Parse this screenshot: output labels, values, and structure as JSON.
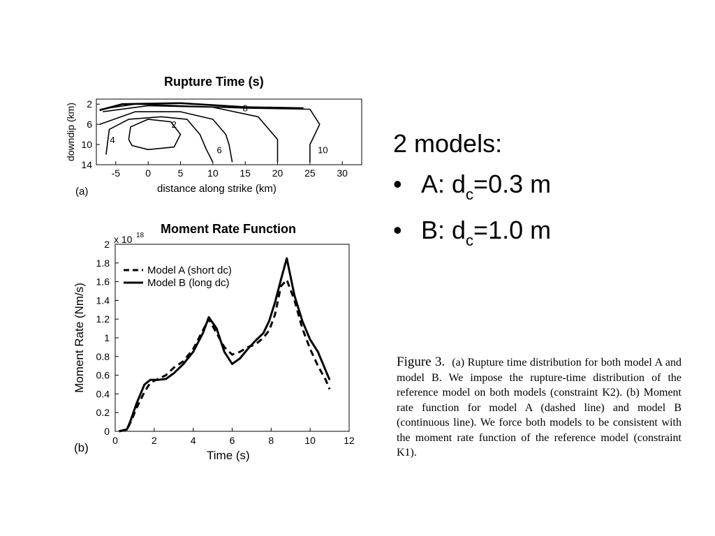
{
  "slide": {
    "heading": "2 models:",
    "bullets": [
      {
        "symbol": "•",
        "prefix": "A: d",
        "subscript": "c",
        "suffix": "=0.3 m"
      },
      {
        "symbol": "•",
        "prefix": "B: d",
        "subscript": "c",
        "suffix": "=1.0 m"
      }
    ]
  },
  "caption": {
    "label": "Figure 3.",
    "text": "(a) Rupture time distribution for both model A and model B. We impose the rupture-time distribution of the reference model on both models (constraint K2). (b) Moment rate function for model A (dashed line) and model B (continuous line). We force both models to be consistent with the moment rate function of the reference model (constraint K1)."
  },
  "chart_data": [
    {
      "type": "contour",
      "panel_label": "(a)",
      "title": "Rupture Time (s)",
      "xlabel": "distance along strike (km)",
      "ylabel": "downdip (km)",
      "xlim": [
        -8,
        33
      ],
      "ylim": [
        14,
        1
      ],
      "x_ticks": [
        -5,
        0,
        5,
        10,
        15,
        20,
        25,
        30
      ],
      "y_ticks": [
        2,
        6,
        10,
        14
      ],
      "contours": [
        {
          "label": "2",
          "points": [
            [
              -3,
              9
            ],
            [
              -2.7,
              6.5
            ],
            [
              0,
              5
            ],
            [
              3.5,
              5.5
            ],
            [
              5,
              8
            ],
            [
              4,
              10.5
            ],
            [
              0,
              11
            ],
            [
              -2.5,
              10.2
            ],
            [
              -3,
              9
            ]
          ]
        },
        {
          "label": "4",
          "points": [
            [
              -6.5,
              12
            ],
            [
              -6,
              7
            ],
            [
              -3,
              5
            ],
            [
              2,
              4.5
            ],
            [
              6,
              5
            ],
            [
              8,
              8
            ],
            [
              9,
              11
            ],
            [
              10,
              13.5
            ]
          ]
        },
        {
          "label": "6",
          "points": [
            [
              -7.5,
              6
            ],
            [
              -2,
              3.5
            ],
            [
              5,
              3.5
            ],
            [
              10,
              5
            ],
            [
              12,
              8
            ],
            [
              12.5,
              10
            ],
            [
              13,
              13.5
            ]
          ]
        },
        {
          "label": "8",
          "points": [
            [
              -7,
              3.5
            ],
            [
              0,
              2.3
            ],
            [
              10,
              2.6
            ],
            [
              17,
              4.5
            ],
            [
              20,
              9
            ],
            [
              20,
              13.5
            ]
          ]
        },
        {
          "label": "10",
          "points": [
            [
              -7.3,
              3
            ],
            [
              -2,
              2
            ],
            [
              15,
              2.8
            ],
            [
              25,
              3
            ],
            [
              26.5,
              6
            ],
            [
              25,
              10
            ],
            [
              25,
              13.5
            ]
          ]
        }
      ],
      "contour_labels": [
        {
          "label": "2",
          "x": 4,
          "y": 6
        },
        {
          "label": "4",
          "x": -5.5,
          "y": 9
        },
        {
          "label": "6",
          "x": 11,
          "y": 11
        },
        {
          "label": "8",
          "x": 15,
          "y": 2.7
        },
        {
          "label": "10",
          "x": 27,
          "y": 11
        }
      ]
    },
    {
      "type": "line",
      "panel_label": "(b)",
      "title": "Moment Rate Function",
      "xlabel": "Time (s)",
      "ylabel": "Moment Rate (Nm/s)",
      "y_scale_label": "x 10",
      "y_scale_exponent": "18",
      "xlim": [
        0,
        12
      ],
      "ylim": [
        0,
        2
      ],
      "x_ticks": [
        0,
        2,
        4,
        6,
        8,
        10,
        12
      ],
      "y_ticks": [
        "0",
        "0.2",
        "0.4",
        "0.6",
        "0.8",
        "1",
        "1.2",
        "1.4",
        "1.6",
        "1.8",
        "2"
      ],
      "legend_placement": "top-left",
      "series": [
        {
          "name": "Model A (short dc)",
          "style": "dashed",
          "x": [
            0.2,
            0.6,
            0.8,
            1.1,
            1.5,
            1.8,
            2.2,
            2.6,
            3.0,
            3.5,
            4.0,
            4.5,
            4.8,
            5.2,
            5.6,
            6.0,
            6.4,
            6.8,
            7.2,
            7.6,
            7.9,
            8.2,
            8.5,
            8.8,
            9.2,
            9.6,
            10.0,
            10.4,
            10.8,
            11.0
          ],
          "y": [
            0,
            0.02,
            0.1,
            0.25,
            0.42,
            0.52,
            0.56,
            0.6,
            0.68,
            0.75,
            0.88,
            1.08,
            1.2,
            1.05,
            0.9,
            0.82,
            0.85,
            0.9,
            0.93,
            1.0,
            1.08,
            1.25,
            1.55,
            1.62,
            1.4,
            1.1,
            0.88,
            0.7,
            0.55,
            0.45
          ]
        },
        {
          "name": "Model B (long dc)",
          "style": "solid",
          "x": [
            0.2,
            0.6,
            0.8,
            1.1,
            1.5,
            1.8,
            2.2,
            2.6,
            3.0,
            3.5,
            4.0,
            4.5,
            4.8,
            5.2,
            5.6,
            6.0,
            6.4,
            6.8,
            7.2,
            7.6,
            7.9,
            8.2,
            8.5,
            8.8,
            9.2,
            9.6,
            10.0,
            10.4,
            10.8,
            11.0
          ],
          "y": [
            0,
            0.02,
            0.12,
            0.3,
            0.5,
            0.55,
            0.55,
            0.56,
            0.62,
            0.72,
            0.85,
            1.05,
            1.22,
            1.1,
            0.85,
            0.72,
            0.78,
            0.88,
            0.97,
            1.05,
            1.18,
            1.38,
            1.62,
            1.85,
            1.45,
            1.18,
            0.98,
            0.85,
            0.65,
            0.55
          ]
        }
      ]
    }
  ],
  "colors": {
    "ink": "#000000",
    "background": "#ffffff"
  }
}
